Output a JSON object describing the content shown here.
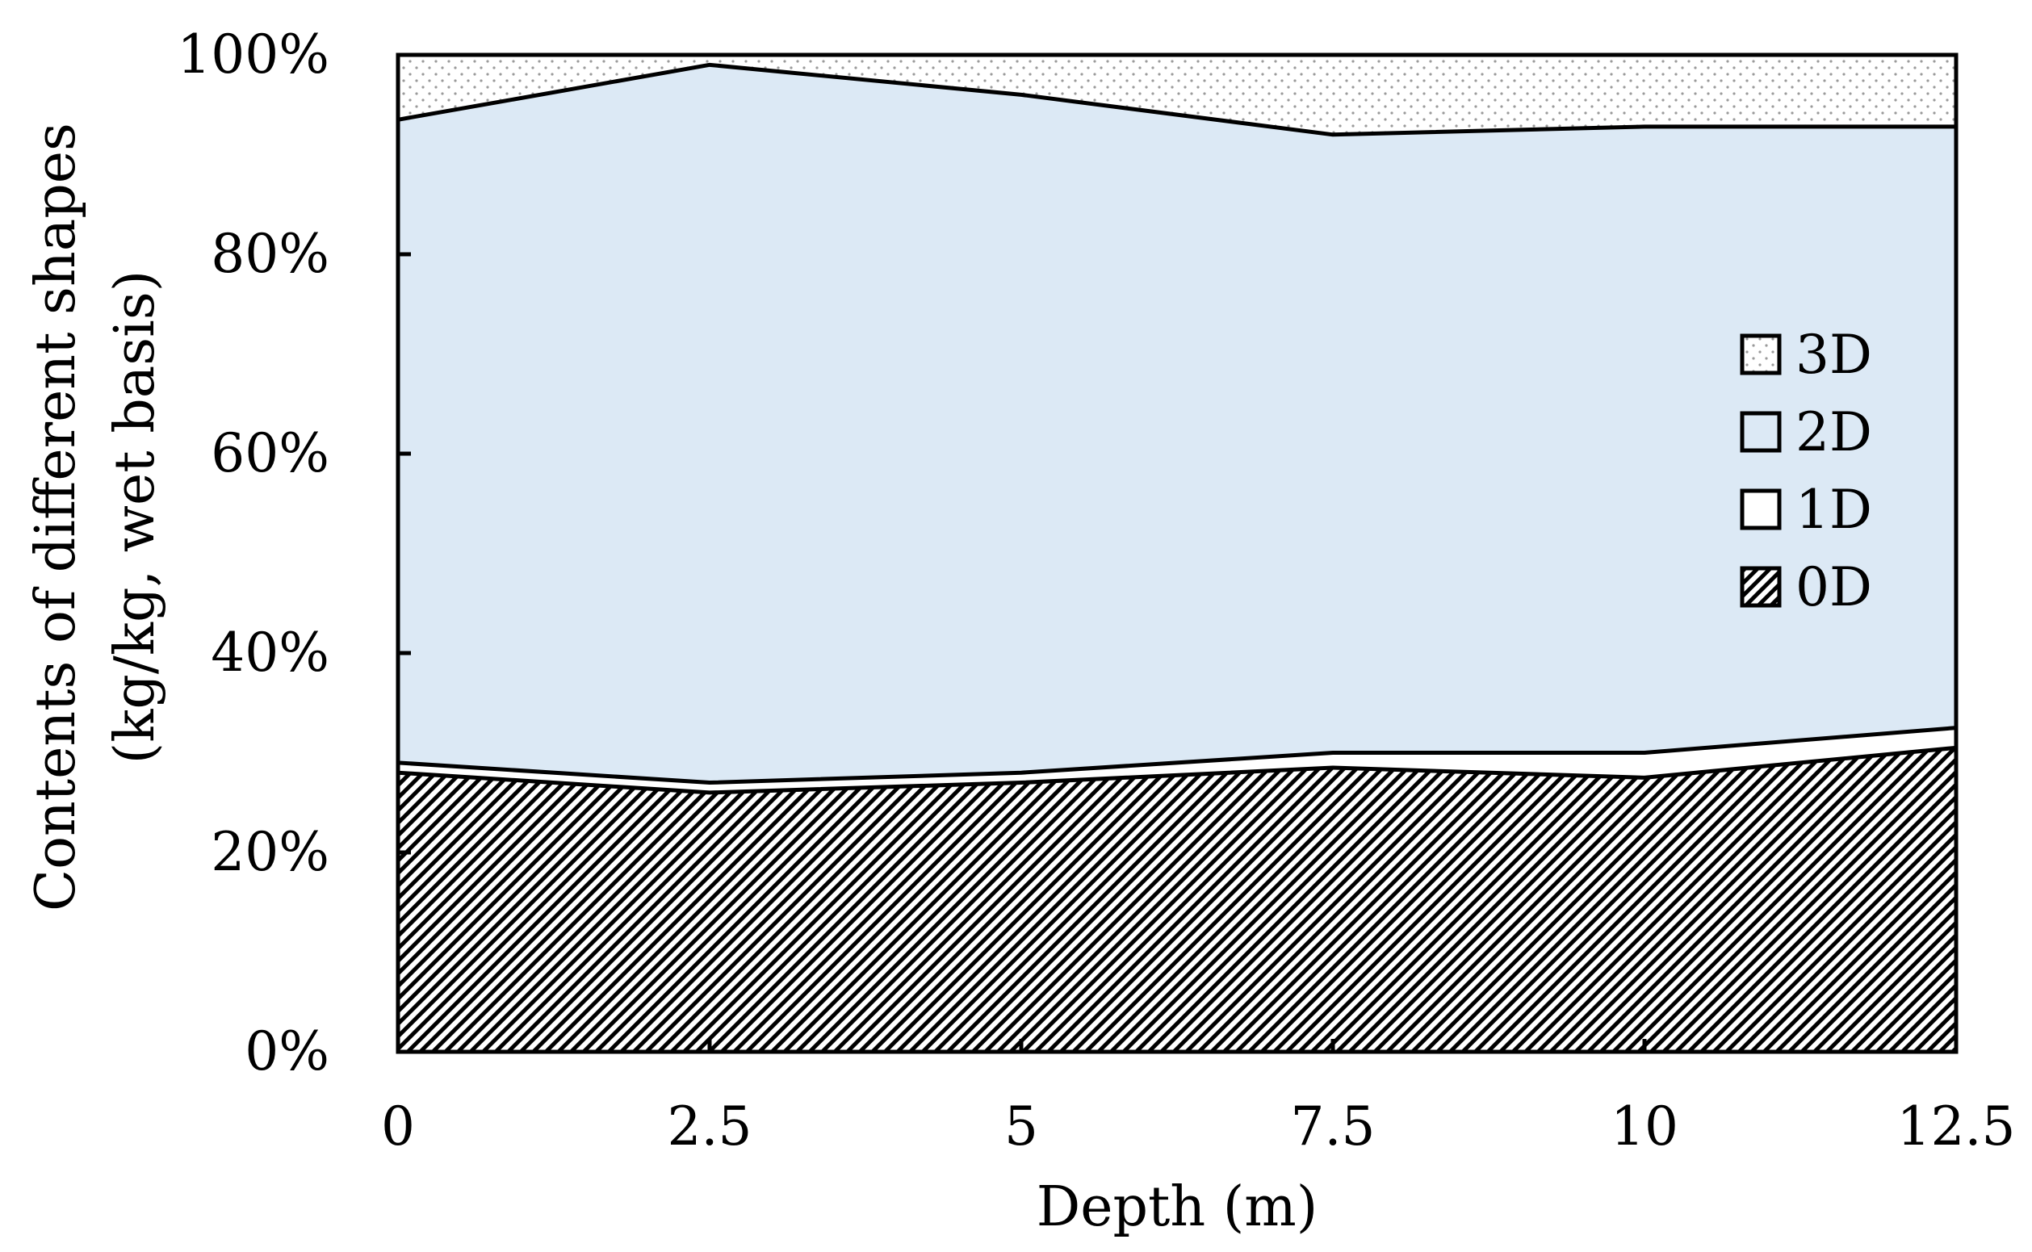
{
  "chart_data": {
    "type": "area",
    "stacked": true,
    "title": "",
    "xlabel": "Depth (m)",
    "ylabel_line1": "Contents of different shapes",
    "ylabel_line2": "(kg/kg, wet basis)",
    "x": [
      0,
      2.5,
      5,
      7.5,
      10,
      12.5
    ],
    "x_tick_labels": [
      "0",
      "2.5",
      "5",
      "7.5",
      "10",
      "12.5"
    ],
    "xlim": [
      0,
      12.5
    ],
    "ylim": [
      0,
      100
    ],
    "y_tick_labels": [
      "0%",
      "20%",
      "40%",
      "60%",
      "80%",
      "100%"
    ],
    "grid": false,
    "legend_position": "right",
    "series": [
      {
        "name": "0D",
        "values": [
          28.0,
          26.0,
          27.0,
          28.5,
          27.5,
          30.5
        ],
        "color": "#ffffff",
        "pattern": "diagonal-hatch"
      },
      {
        "name": "1D",
        "values": [
          1.0,
          1.0,
          1.0,
          1.5,
          2.5,
          2.0
        ],
        "color": "#ffffff",
        "pattern": "none"
      },
      {
        "name": "2D",
        "values": [
          64.5,
          72.0,
          68.0,
          62.0,
          62.8,
          60.3
        ],
        "color": "#dce9f5",
        "pattern": "none"
      },
      {
        "name": "3D",
        "values": [
          6.5,
          1.0,
          4.0,
          8.0,
          7.2,
          7.2
        ],
        "color": "#ffffff",
        "pattern": "dots"
      }
    ],
    "legend_order": [
      "3D",
      "2D",
      "1D",
      "0D"
    ]
  }
}
